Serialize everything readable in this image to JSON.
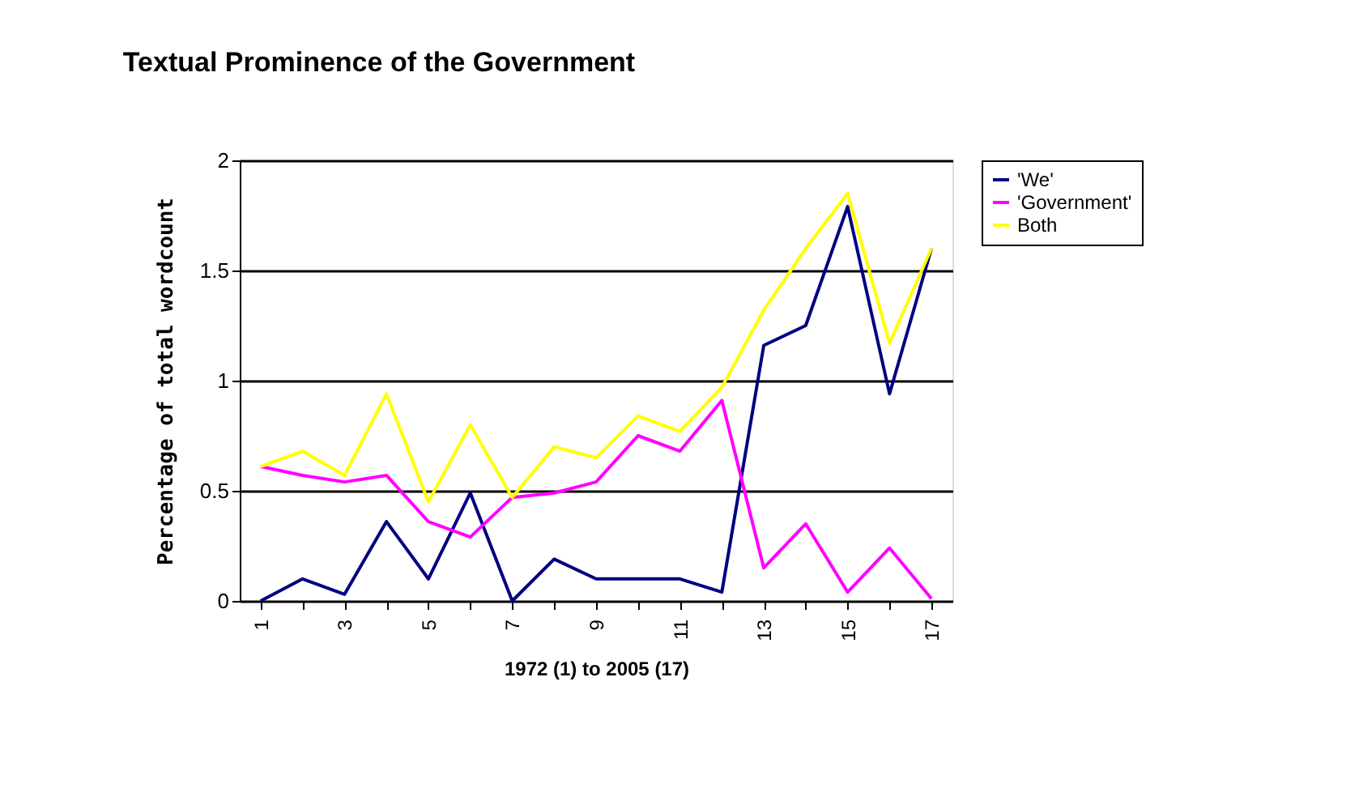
{
  "chart_data": {
    "type": "line",
    "title": "Textual Prominence of the Government",
    "xlabel": "1972 (1) to 2005 (17)",
    "ylabel": "Percentage of total wordcount",
    "categories": [
      "1",
      null,
      "3",
      null,
      "5",
      null,
      "7",
      null,
      "9",
      null,
      "11",
      null,
      "13",
      null,
      "15",
      null,
      "17"
    ],
    "series": [
      {
        "name": "'We'",
        "color": "#000080",
        "values": [
          0,
          0.1,
          0.03,
          0.36,
          0.1,
          0.49,
          0,
          0.19,
          0.1,
          0.1,
          0.1,
          0.04,
          1.16,
          1.25,
          1.79,
          0.94,
          1.6
        ]
      },
      {
        "name": "'Government'",
        "color": "#ff00ff",
        "values": [
          0.61,
          0.57,
          0.54,
          0.57,
          0.36,
          0.29,
          0.47,
          0.49,
          0.54,
          0.75,
          0.68,
          0.91,
          0.15,
          0.35,
          0.04,
          0.24,
          0.01
        ]
      },
      {
        "name": "Both",
        "color": "#ffff00",
        "values": [
          0.61,
          0.68,
          0.57,
          0.94,
          0.45,
          0.8,
          0.47,
          0.7,
          0.65,
          0.84,
          0.77,
          0.97,
          1.32,
          1.6,
          1.85,
          1.17,
          1.6
        ]
      }
    ],
    "ylim": [
      0,
      2
    ],
    "yticks": [
      0,
      0.5,
      1,
      1.5,
      2
    ],
    "grid": "y",
    "legend": "right",
    "marker": "none",
    "line_style": "solid"
  }
}
